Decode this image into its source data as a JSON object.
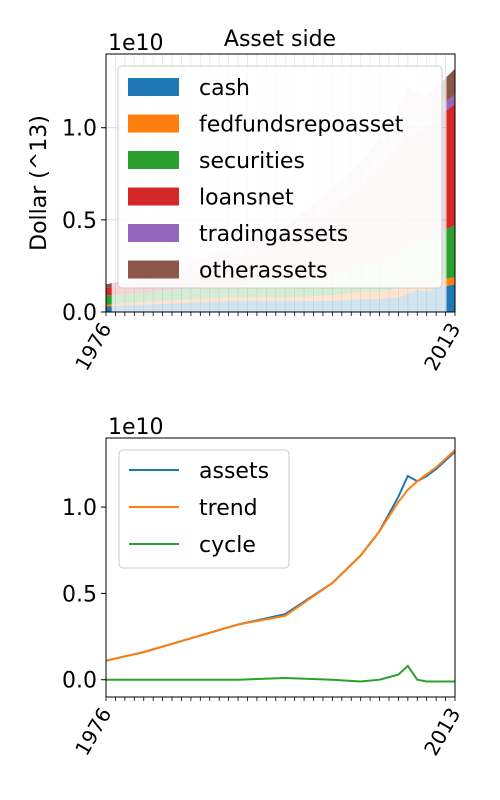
{
  "chart_data": [
    {
      "type": "area",
      "stacked": true,
      "title": "Asset side",
      "ylabel": "Dollar (^13)",
      "xlabel": "",
      "offset_text": "1e10",
      "x_start": 1976,
      "x_end": 2013,
      "x_tick_labels": [
        "1976",
        "2013"
      ],
      "ylim": [
        0,
        1.4
      ],
      "yticks": [
        0.0,
        0.5,
        1.0
      ],
      "ytick_labels": [
        "0.0",
        "0.5",
        "1.0"
      ],
      "grid": true,
      "legend_position": "upper-left",
      "x": [
        1976,
        1980,
        1985,
        1990,
        1995,
        2000,
        2003,
        2005,
        2007,
        2008,
        2009,
        2010,
        2011,
        2012,
        2013
      ],
      "series": [
        {
          "name": "cash",
          "color": "#1f77b4",
          "values": [
            0.03,
            0.04,
            0.05,
            0.06,
            0.06,
            0.06,
            0.07,
            0.07,
            0.08,
            0.1,
            0.12,
            0.11,
            0.13,
            0.14,
            0.15
          ]
        },
        {
          "name": "fedfundsrepoasset",
          "color": "#ff7f0e",
          "values": [
            0.01,
            0.015,
            0.02,
            0.02,
            0.02,
            0.03,
            0.04,
            0.04,
            0.05,
            0.05,
            0.04,
            0.04,
            0.04,
            0.04,
            0.04
          ]
        },
        {
          "name": "securities",
          "color": "#2ca02c",
          "values": [
            0.05,
            0.05,
            0.06,
            0.07,
            0.09,
            0.12,
            0.15,
            0.17,
            0.18,
            0.2,
            0.22,
            0.24,
            0.25,
            0.27,
            0.28
          ]
        },
        {
          "name": "loansnet",
          "color": "#d62728",
          "values": [
            0.04,
            0.06,
            0.1,
            0.16,
            0.22,
            0.36,
            0.43,
            0.52,
            0.6,
            0.64,
            0.6,
            0.6,
            0.62,
            0.64,
            0.66
          ]
        },
        {
          "name": "tradingassets",
          "color": "#9467bd",
          "values": [
            0.0,
            0.0,
            0.0,
            0.0,
            0.01,
            0.02,
            0.03,
            0.04,
            0.07,
            0.09,
            0.06,
            0.05,
            0.05,
            0.05,
            0.05
          ]
        },
        {
          "name": "otherassets",
          "color": "#8c564b",
          "values": [
            0.02,
            0.03,
            0.04,
            0.05,
            0.06,
            0.08,
            0.09,
            0.1,
            0.12,
            0.14,
            0.14,
            0.13,
            0.13,
            0.13,
            0.14
          ]
        }
      ]
    },
    {
      "type": "line",
      "title": "",
      "xlabel": "",
      "ylabel": "",
      "offset_text": "1e10",
      "x_start": 1976,
      "x_end": 2013,
      "x_tick_labels": [
        "1976",
        "2013"
      ],
      "ylim": [
        -0.1,
        1.4
      ],
      "yticks": [
        0.0,
        0.5,
        1.0
      ],
      "ytick_labels": [
        "0.0",
        "0.5",
        "1.0"
      ],
      "grid": false,
      "legend_position": "upper-left",
      "x": [
        1976,
        1980,
        1985,
        1990,
        1995,
        2000,
        2003,
        2005,
        2007,
        2008,
        2009,
        2010,
        2011,
        2012,
        2013
      ],
      "series": [
        {
          "name": "assets",
          "color": "#1f77b4",
          "values": [
            0.11,
            0.16,
            0.24,
            0.32,
            0.38,
            0.56,
            0.72,
            0.86,
            1.06,
            1.18,
            1.15,
            1.18,
            1.22,
            1.27,
            1.32
          ]
        },
        {
          "name": "trend",
          "color": "#ff7f0e",
          "values": [
            0.11,
            0.16,
            0.24,
            0.32,
            0.37,
            0.56,
            0.72,
            0.86,
            1.03,
            1.1,
            1.15,
            1.19,
            1.23,
            1.28,
            1.33
          ]
        },
        {
          "name": "cycle",
          "color": "#2ca02c",
          "values": [
            0.0,
            0.0,
            0.0,
            0.0,
            0.01,
            0.0,
            -0.01,
            0.0,
            0.03,
            0.08,
            0.0,
            -0.01,
            -0.01,
            -0.01,
            -0.01
          ]
        }
      ]
    }
  ]
}
